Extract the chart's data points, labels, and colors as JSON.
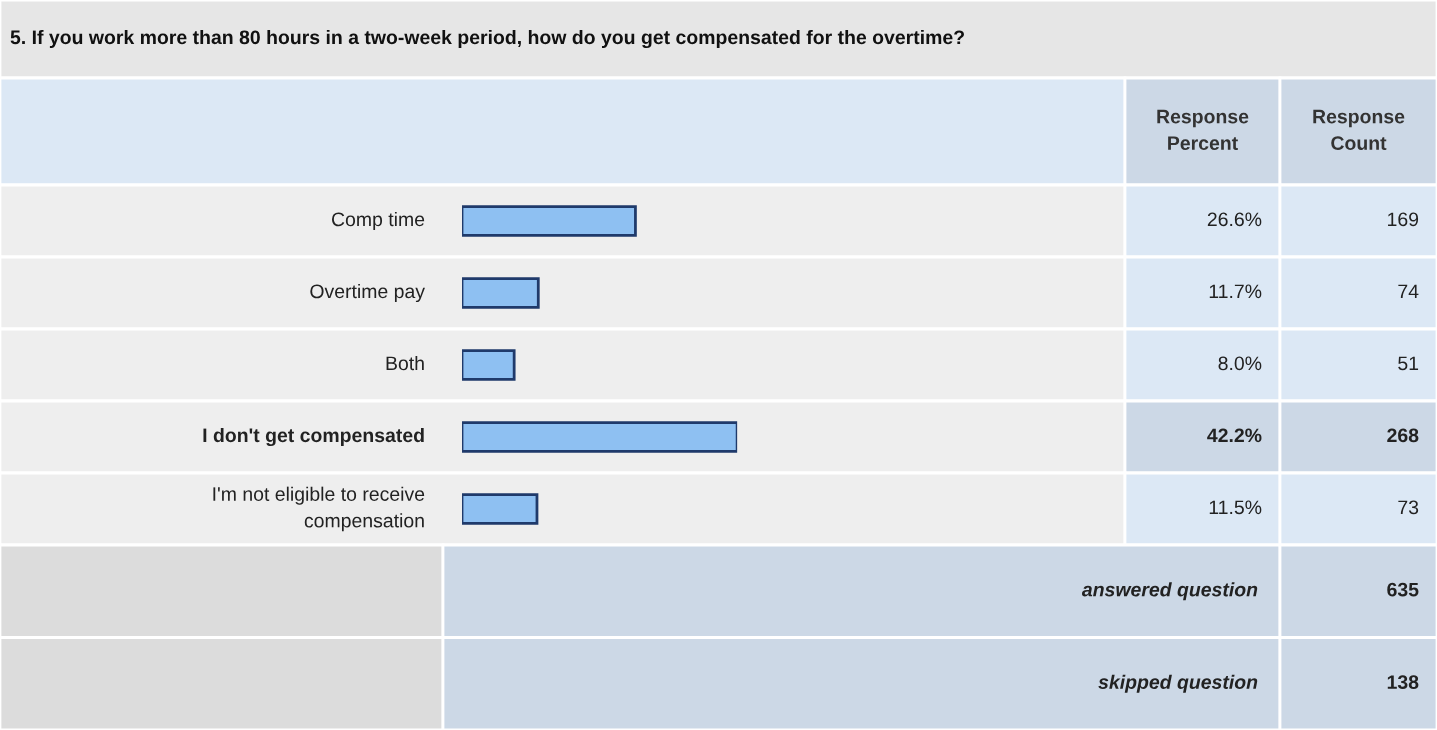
{
  "chart_data": {
    "type": "bar",
    "orientation": "horizontal",
    "title": "5. If you work more than 80 hours in a two-week period, how do you get compensated for the overtime?",
    "categories": [
      "Comp time",
      "Overtime pay",
      "Both",
      "I don't get compensated",
      "I'm not eligible to receive compensation"
    ],
    "values": [
      26.6,
      11.7,
      8.0,
      42.2,
      11.5
    ],
    "value_labels": [
      "26.6%",
      "11.7%",
      "8.0%",
      "42.2%",
      "11.5%"
    ],
    "color": "#8ec0f2",
    "tick_labels": false,
    "legend": false,
    "annotations": [
      "Response Percent",
      "Response Count",
      "169",
      "74",
      "51",
      "268",
      "73",
      "answered question",
      "635",
      "skipped question",
      "138"
    ]
  }
}
